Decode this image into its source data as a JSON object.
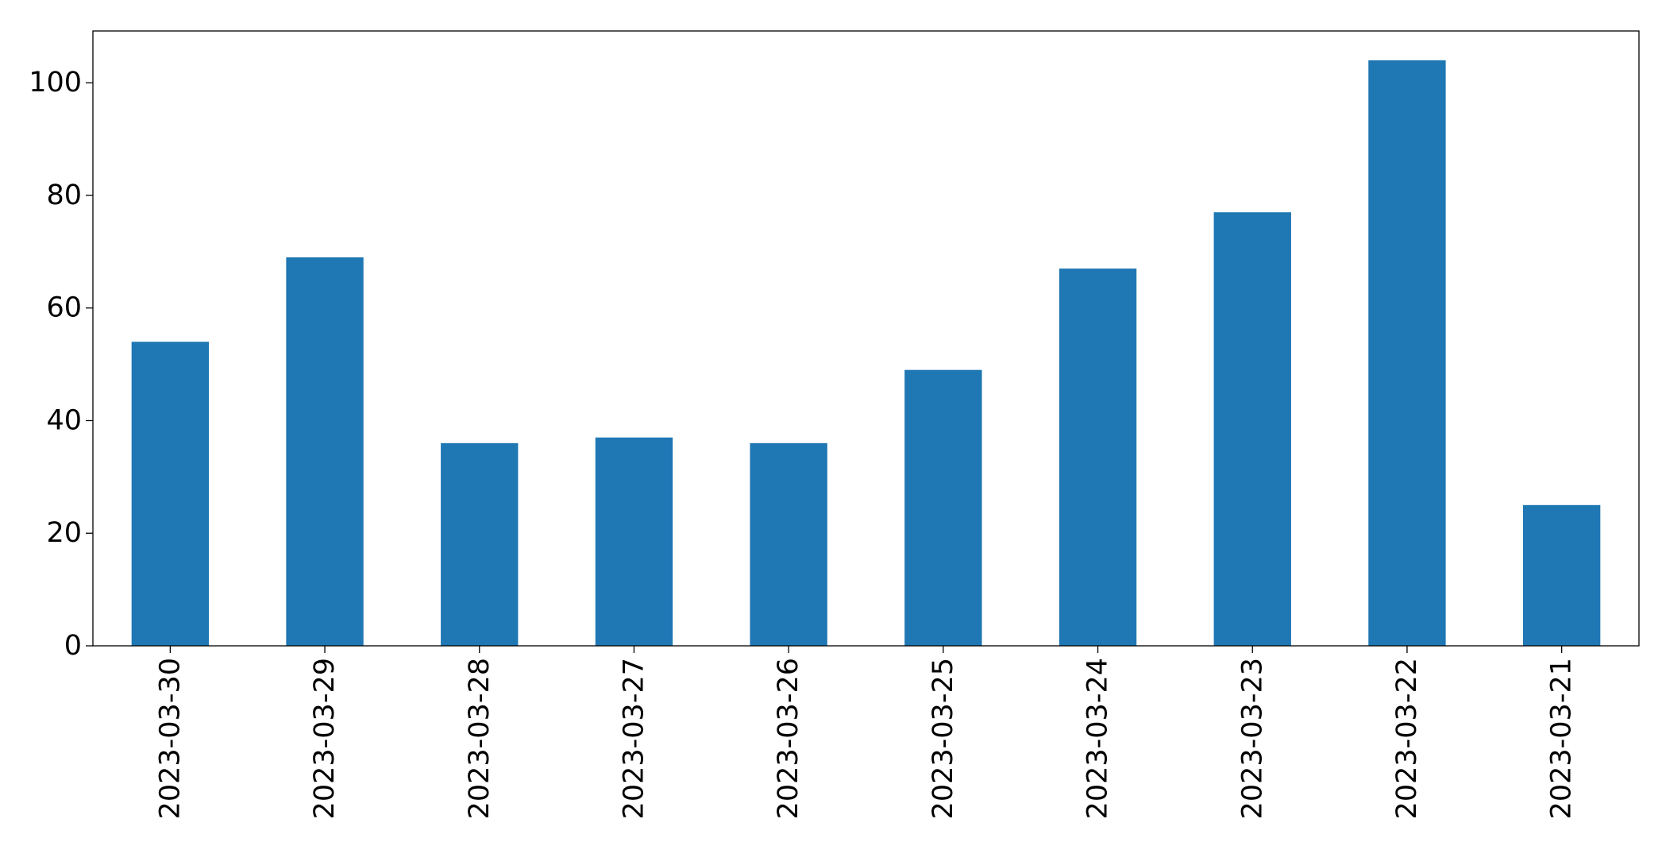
{
  "chart_data": {
    "type": "bar",
    "title": "",
    "xlabel": "",
    "ylabel": "",
    "categories": [
      "2023-03-30",
      "2023-03-29",
      "2023-03-28",
      "2023-03-27",
      "2023-03-26",
      "2023-03-25",
      "2023-03-24",
      "2023-03-23",
      "2023-03-22",
      "2023-03-21"
    ],
    "values": [
      54,
      69,
      36,
      37,
      36,
      49,
      67,
      77,
      104,
      25
    ],
    "ylim": [
      0,
      109.2
    ],
    "yticks": [
      "0",
      "20",
      "40",
      "60",
      "80",
      "100"
    ],
    "grid": false,
    "legend": "none",
    "bar_color": "#1f77b4"
  }
}
